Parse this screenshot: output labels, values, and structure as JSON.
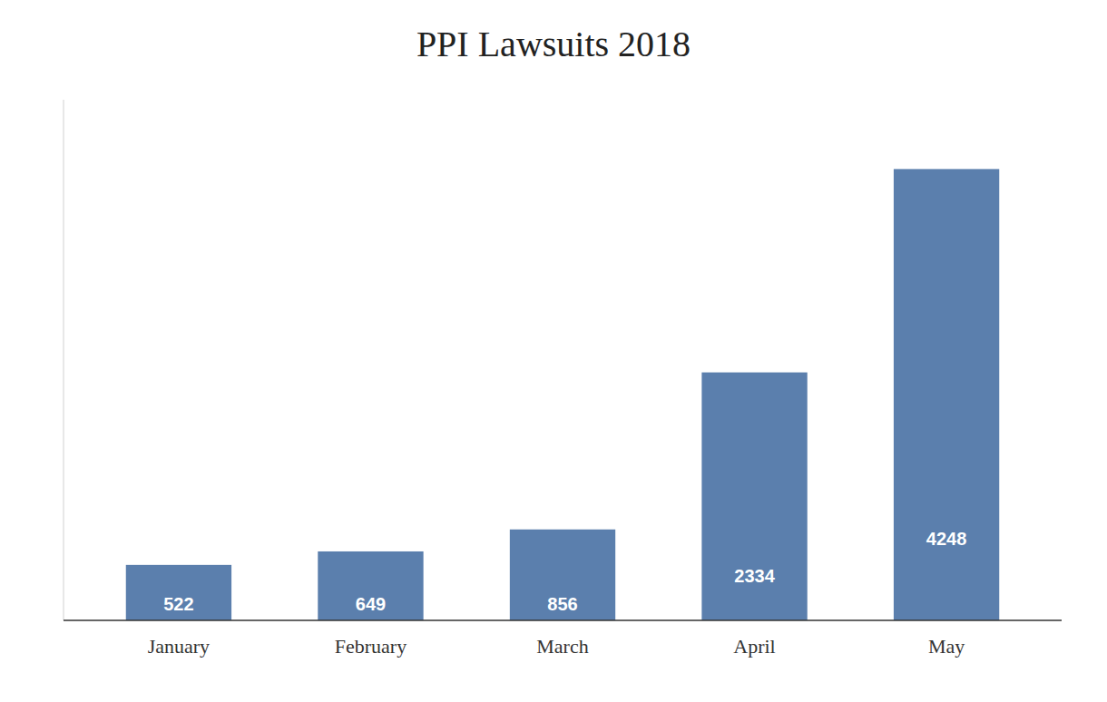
{
  "chart_data": {
    "type": "bar",
    "title": "PPI Lawsuits 2018",
    "categories": [
      "January",
      "February",
      "March",
      "April",
      "May"
    ],
    "values": [
      522,
      649,
      856,
      2334,
      4248
    ],
    "color": "#5b7fad",
    "ylim": [
      0,
      4900
    ],
    "grid": false,
    "data_labels": true,
    "tick_labels": "x"
  }
}
